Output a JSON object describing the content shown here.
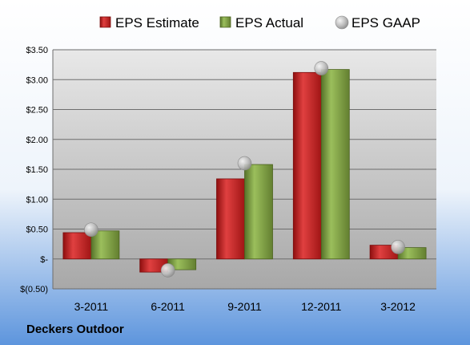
{
  "chart_data": {
    "type": "bar",
    "company": "Deckers Outdoor",
    "categories": [
      "3-2011",
      "6-2011",
      "9-2011",
      "12-2011",
      "3-2012"
    ],
    "series": [
      {
        "name": "EPS Estimate",
        "type": "bar",
        "color": "#cc1f1f",
        "values": [
          0.44,
          -0.22,
          1.34,
          3.12,
          0.23
        ]
      },
      {
        "name": "EPS Actual",
        "type": "bar",
        "color": "#7a9c3a",
        "values": [
          0.47,
          -0.18,
          1.58,
          3.17,
          0.19
        ]
      },
      {
        "name": "EPS GAAP",
        "type": "marker",
        "color": "#b8b8b8",
        "values": [
          0.49,
          -0.19,
          1.6,
          3.19,
          0.2
        ]
      }
    ],
    "ylim": [
      -0.5,
      3.5
    ],
    "yticks": [
      -0.5,
      0,
      0.5,
      1.0,
      1.5,
      2.0,
      2.5,
      3.0,
      3.5
    ],
    "ytick_labels": [
      "$(0.50)",
      "$-",
      "$0.50",
      "$1.00",
      "$1.50",
      "$2.00",
      "$2.50",
      "$3.00",
      "$3.50"
    ],
    "grid": true,
    "legend_position": "top"
  }
}
